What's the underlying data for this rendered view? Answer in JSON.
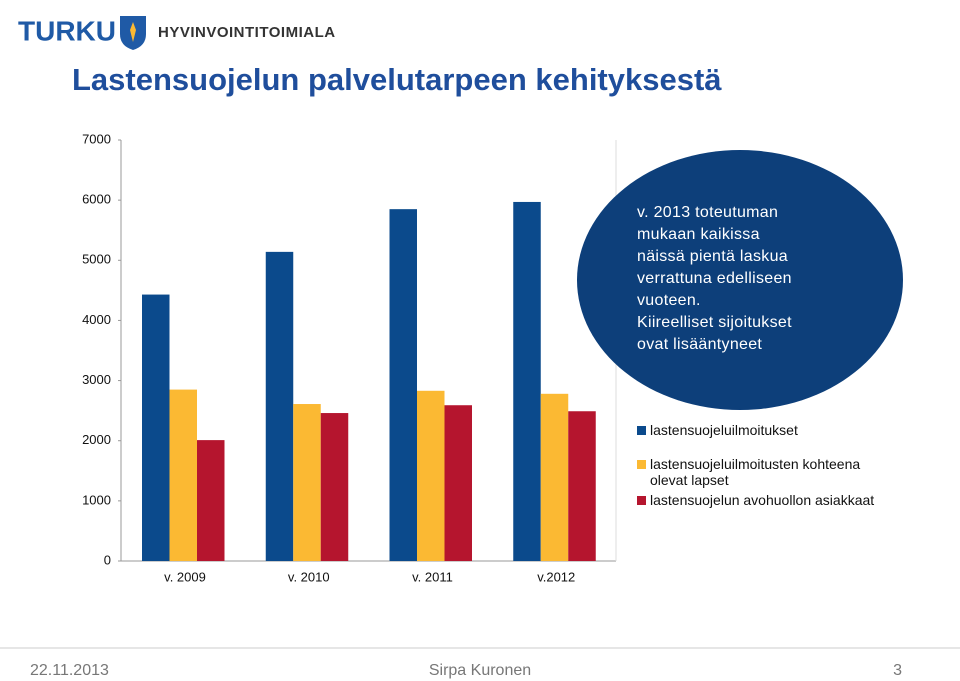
{
  "slide": {
    "logo_text": "TURKU",
    "department": "HYVINVOINTITOIMIALA",
    "title": "Lastensuojelun palvelutarpeen kehityksestä"
  },
  "chart_data": {
    "type": "bar",
    "categories": [
      "v. 2009",
      "v. 2010",
      "v. 2011",
      "v.2012"
    ],
    "series": [
      {
        "name": "lastensuojeluilmoitukset",
        "color": "#0b4a8c",
        "values": [
          4430,
          5140,
          5850,
          5970
        ]
      },
      {
        "name": "lastensuojeluilmoitusten kohteena olevat lapset",
        "color": "#fbb933",
        "values": [
          2850,
          2610,
          2830,
          2780
        ]
      },
      {
        "name": "lastensuojelun avohuollon asiakkaat",
        "color": "#b5152e",
        "values": [
          2010,
          2460,
          2590,
          2490
        ]
      }
    ],
    "ylim": [
      0,
      7000
    ],
    "yticks": [
      0,
      1000,
      2000,
      3000,
      4000,
      5000,
      6000,
      7000
    ],
    "grid": false,
    "annotation": [
      "v. 2013 toteutuman",
      "mukaan kaikissa",
      "näissä pientä laskua",
      "verrattuna edelliseen",
      "vuoteen.",
      "Kiireelliset sijoitukset",
      "ovat lisääntyneet"
    ]
  },
  "footer": {
    "date": "22.11.2013",
    "author": "Sirpa Kuronen",
    "page": "3"
  }
}
